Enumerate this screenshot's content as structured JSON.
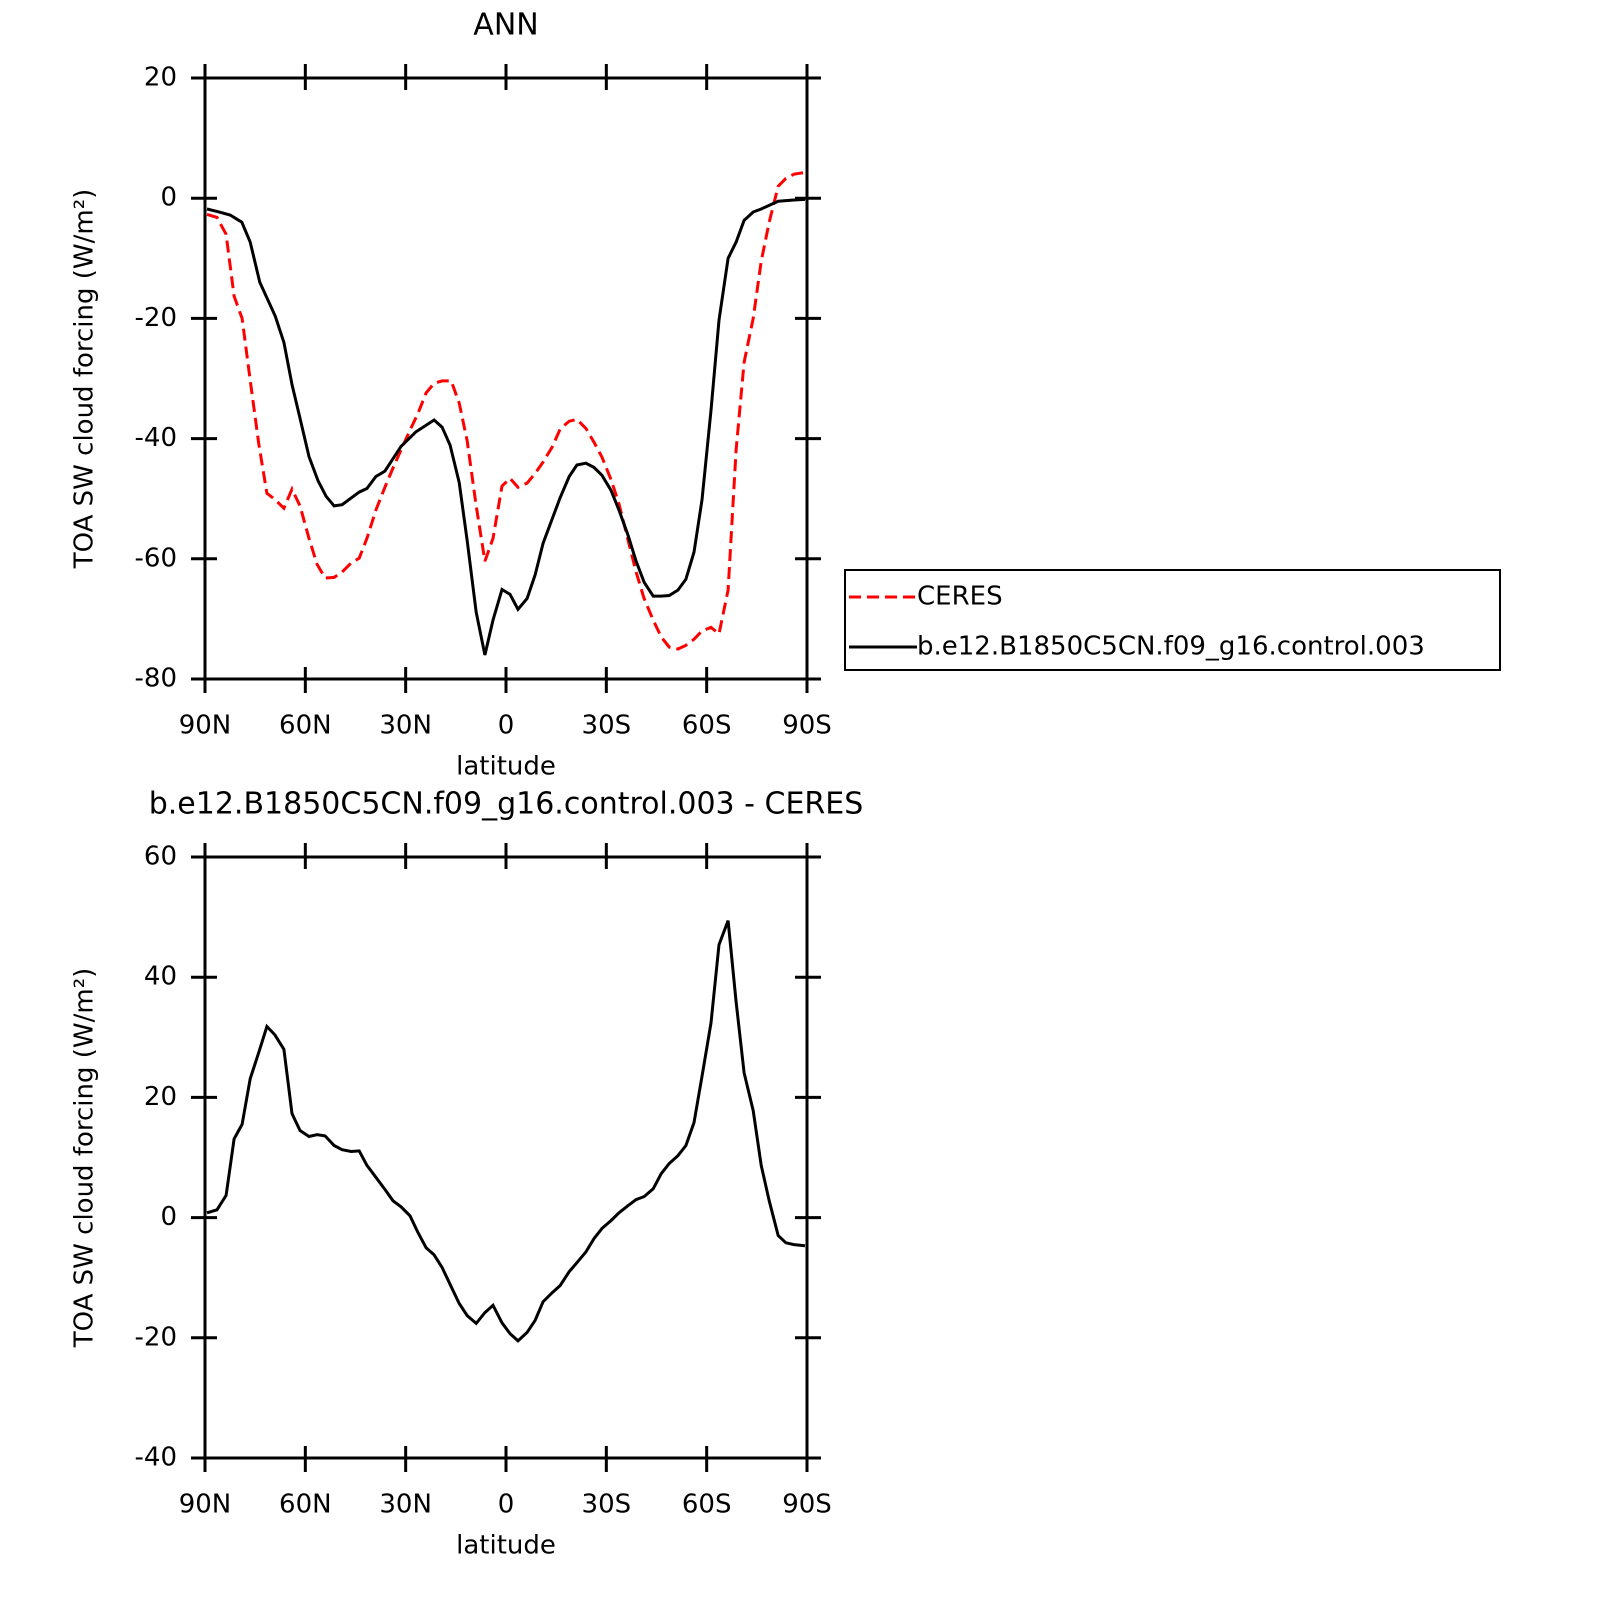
{
  "chart_data": [
    {
      "type": "line",
      "title": "ANN",
      "x_label": "latitude",
      "y_label": "TOA SW cloud forcing (W/m²)",
      "xlim": [
        90,
        -90
      ],
      "ylim": [
        -80,
        20
      ],
      "xticks": [
        {
          "value": 90,
          "label": "90N"
        },
        {
          "value": 60,
          "label": "60N"
        },
        {
          "value": 30,
          "label": "30N"
        },
        0,
        {
          "value": -30,
          "label": "30S"
        },
        {
          "value": -60,
          "label": "60S"
        },
        {
          "value": -90,
          "label": "90S"
        }
      ],
      "yticks": [
        -80,
        -60,
        -40,
        -20,
        0,
        20
      ],
      "legend": "right",
      "series": [
        {
          "name": "CERES",
          "color": "#ff0000",
          "dash": true,
          "x": [
            89.4,
            86.4,
            83.7,
            81.3,
            78.9,
            76.5,
            73.9,
            71.5,
            69.1,
            66.4,
            64,
            61.6,
            58.9,
            56.5,
            54.1,
            51.4,
            49,
            46.3,
            43.9,
            41.6,
            38.9,
            36.2,
            33.8,
            31.4,
            28.7,
            26.3,
            23.9,
            21.5,
            19.1,
            16.4,
            14,
            11.6,
            8.9,
            6.3,
            3.9,
            1.2,
            -1.2,
            -3.6,
            -6.3,
            -8.7,
            -11.1,
            -13.8,
            -16.2,
            -18.9,
            -21.2,
            -23.9,
            -26.3,
            -28.7,
            -31.4,
            -33.8,
            -36.5,
            -38.9,
            -41.3,
            -44,
            -46.4,
            -48.8,
            -51.4,
            -53.8,
            -56.2,
            -58.6,
            -61.3,
            -63.7,
            -66.4,
            -68.8,
            -71.2,
            -73.9,
            -76.3,
            -78.7,
            -81.4,
            -83.7,
            -86.1,
            -89.4
          ],
          "values": [
            -2.7,
            -3.2,
            -6,
            -16.3,
            -20,
            -30.3,
            -40.9,
            -49.1,
            -50.1,
            -51.6,
            -48.4,
            -51.2,
            -56.6,
            -60.9,
            -63.2,
            -63.1,
            -62.2,
            -60.7,
            -59.9,
            -56.6,
            -51.9,
            -48.1,
            -44.9,
            -41.9,
            -38.6,
            -35.8,
            -32.4,
            -30.8,
            -30.4,
            -30.4,
            -34.1,
            -40.4,
            -51.2,
            -60.4,
            -56.6,
            -47.9,
            -46.6,
            -48.1,
            -47.4,
            -45.8,
            -43.9,
            -41.4,
            -38.4,
            -37.1,
            -36.8,
            -38.3,
            -40.6,
            -43.1,
            -46.8,
            -50.9,
            -56.9,
            -62.2,
            -66.6,
            -70.2,
            -73,
            -74.7,
            -75,
            -74.4,
            -73.4,
            -72,
            -71.4,
            -72.5,
            -65.2,
            -41.9,
            -27.3,
            -20,
            -10.5,
            -4,
            2,
            3.3,
            4,
            4.3
          ]
        },
        {
          "name": "b.e12.B1850C5CN.f09_g16.control.003",
          "color": "#000000",
          "x": [
            89.4,
            86.4,
            82.5,
            79,
            76.5,
            73.6,
            69,
            66.4,
            64,
            61.6,
            58.9,
            56.2,
            53.8,
            51.4,
            49,
            43.9,
            41.6,
            38.9,
            36.2,
            31.4,
            27,
            21.5,
            19.1,
            16.7,
            14,
            11.6,
            8.9,
            6.3,
            3.9,
            1.2,
            -1.2,
            -3.6,
            -6.3,
            -8.7,
            -11.1,
            -16.2,
            -18.9,
            -21.2,
            -23.9,
            -26.3,
            -28.7,
            -31.4,
            -33.8,
            -36.5,
            -38.9,
            -41.3,
            -44,
            -46.4,
            -48.8,
            -51.4,
            -53.8,
            -56.2,
            -58.6,
            -61.3,
            -63.7,
            -66.4,
            -68.8,
            -71.2,
            -73.9,
            -76.3,
            -81.4,
            -86.1,
            -89.4
          ],
          "values": [
            -1.8,
            -2.2,
            -2.8,
            -4,
            -7.3,
            -14,
            -19.6,
            -24,
            -31,
            -36.6,
            -43,
            -47,
            -49.6,
            -51.2,
            -51,
            -48.9,
            -48.3,
            -46.3,
            -45.4,
            -41.3,
            -38.9,
            -36.9,
            -38.1,
            -41.1,
            -47.3,
            -57,
            -68.9,
            -76,
            -70.2,
            -65.1,
            -65.9,
            -68.4,
            -66.6,
            -62.7,
            -57.4,
            -49.8,
            -46.3,
            -44.4,
            -44.1,
            -44.8,
            -46.1,
            -48.6,
            -51.9,
            -56.1,
            -60.4,
            -63.9,
            -66.2,
            -66.2,
            -66.1,
            -65.2,
            -63.4,
            -58.9,
            -50.2,
            -35.3,
            -20.3,
            -10,
            -7.3,
            -3.7,
            -2.3,
            -1.8,
            -0.5,
            -0.3,
            -0.2
          ]
        }
      ]
    },
    {
      "type": "line",
      "title": "b.e12.B1850C5CN.f09_g16.control.003 - CERES",
      "x_label": "latitude",
      "y_label": "TOA SW cloud forcing (W/m²)",
      "xlim": [
        90,
        -90
      ],
      "ylim": [
        -40,
        60
      ],
      "xticks": [
        {
          "value": 90,
          "label": "90N"
        },
        {
          "value": 60,
          "label": "60N"
        },
        {
          "value": 30,
          "label": "30N"
        },
        0,
        {
          "value": -30,
          "label": "30S"
        },
        {
          "value": -60,
          "label": "60S"
        },
        {
          "value": -90,
          "label": "90S"
        }
      ],
      "yticks": [
        -40,
        -20,
        0,
        20,
        40,
        60
      ],
      "series": [
        {
          "color": "#000000",
          "x": [
            89.4,
            86.4,
            83.7,
            81.3,
            78.9,
            76.5,
            73.9,
            71.5,
            69.1,
            66.4,
            64,
            61.6,
            58.9,
            56.5,
            54.1,
            51.4,
            49,
            46.3,
            43.9,
            41.6,
            38.9,
            36.2,
            33.8,
            31.4,
            28.7,
            26.3,
            23.9,
            21.5,
            19.1,
            16.4,
            14,
            11.6,
            8.9,
            6.3,
            3.9,
            1.2,
            -1.2,
            -3.6,
            -6.3,
            -8.7,
            -11.1,
            -13.8,
            -16.2,
            -18.9,
            -21.2,
            -23.9,
            -26.3,
            -28.7,
            -31.4,
            -33.8,
            -36.5,
            -38.9,
            -41.3,
            -44,
            -46.4,
            -48.8,
            -51.4,
            -53.8,
            -56.2,
            -58.6,
            -61.3,
            -63.7,
            -66.4,
            -68.8,
            -71.2,
            -73.9,
            -76.3,
            -78.7,
            -81.4,
            -83.7,
            -86.1,
            -89.4
          ],
          "values": [
            0.8,
            1.3,
            3.7,
            13.1,
            15.5,
            23.1,
            27.5,
            31.8,
            30.4,
            28,
            17.3,
            14.5,
            13.5,
            13.8,
            13.6,
            12,
            11.3,
            11,
            11.1,
            8.7,
            6.7,
            4.7,
            2.8,
            1.8,
            0.3,
            -2.5,
            -5,
            -6.2,
            -8.3,
            -11.5,
            -14.3,
            -16.3,
            -17.6,
            -15.8,
            -14.6,
            -17.5,
            -19.3,
            -20.5,
            -19.1,
            -17.1,
            -14,
            -12.5,
            -11.3,
            -9,
            -7.5,
            -5.7,
            -3.5,
            -1.8,
            -0.5,
            0.8,
            2,
            3,
            3.5,
            4.8,
            7.3,
            9,
            10.3,
            12,
            15.8,
            23.5,
            32.4,
            45.4,
            49.4,
            35.9,
            24.1,
            17.8,
            8.7,
            2.8,
            -3,
            -4.2,
            -4.5,
            -4.7
          ]
        }
      ]
    }
  ]
}
